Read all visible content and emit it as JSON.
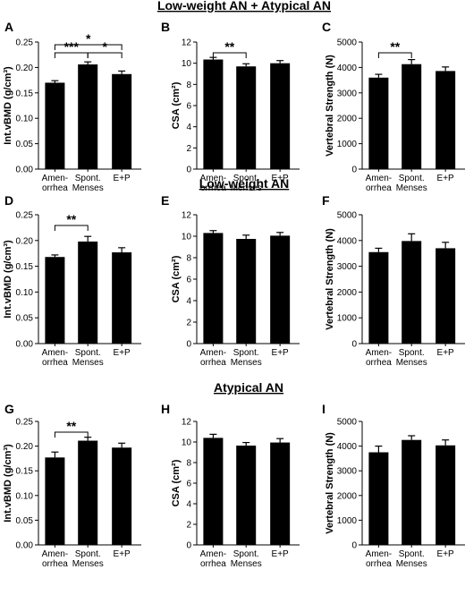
{
  "rows": [
    {
      "title": "Low-weight AN + Atypical AN"
    },
    {
      "title": "Low-weight AN"
    },
    {
      "title": "Atypical AN"
    }
  ],
  "chart_data": [
    {
      "type": "bar",
      "panel": "A",
      "categories": [
        [
          "Amen-",
          "orrhea"
        ],
        [
          "Spont.",
          "Menses"
        ],
        [
          "E+P"
        ]
      ],
      "values": [
        0.17,
        0.206,
        0.187
      ],
      "errors": [
        0.004,
        0.005,
        0.006
      ],
      "ylabel": "Int.vBMD  (g/cm³)",
      "ylim": [
        0,
        0.25
      ],
      "yticks": [
        "0.00",
        "0.05",
        "0.10",
        "0.15",
        "0.20",
        "0.25"
      ],
      "sig": [
        {
          "from": 0,
          "to": 1,
          "level": 1,
          "label": "***"
        },
        {
          "from": 1,
          "to": 2,
          "level": 1,
          "label": "*"
        },
        {
          "from": 0,
          "to": 2,
          "level": 2,
          "label": "*"
        }
      ]
    },
    {
      "type": "bar",
      "panel": "B",
      "categories": [
        [
          "Amen-",
          "orrhea"
        ],
        [
          "Spont.",
          "Menses"
        ],
        [
          "E+P"
        ]
      ],
      "values": [
        10.35,
        9.7,
        10.0
      ],
      "errors": [
        0.2,
        0.25,
        0.25
      ],
      "ylabel": "CSA (cm²)",
      "ylim": [
        0,
        12
      ],
      "yticks": [
        "0",
        "2",
        "4",
        "6",
        "8",
        "10",
        "12"
      ],
      "sig": [
        {
          "from": 0,
          "to": 1,
          "level": 1,
          "label": "**"
        }
      ]
    },
    {
      "type": "bar",
      "panel": "C",
      "categories": [
        [
          "Amen-",
          "orrhea"
        ],
        [
          "Spont.",
          "Menses"
        ],
        [
          "E+P"
        ]
      ],
      "values": [
        3600,
        4130,
        3860
      ],
      "errors": [
        130,
        180,
        160
      ],
      "ylabel": "Vertebral Strength (N)",
      "ylim": [
        0,
        5000
      ],
      "yticks": [
        "0",
        "1000",
        "2000",
        "3000",
        "4000",
        "5000"
      ],
      "sig": [
        {
          "from": 0,
          "to": 1,
          "level": 1,
          "label": "**"
        }
      ]
    },
    {
      "type": "bar",
      "panel": "D",
      "categories": [
        [
          "Amen-",
          "orrhea"
        ],
        [
          "Spont.",
          "Menses"
        ],
        [
          "E+P"
        ]
      ],
      "values": [
        0.168,
        0.198,
        0.177
      ],
      "errors": [
        0.004,
        0.01,
        0.009
      ],
      "ylabel": "Int.vBMD  (g/cm³)",
      "ylim": [
        0,
        0.25
      ],
      "yticks": [
        "0.00",
        "0.05",
        "0.10",
        "0.15",
        "0.20",
        "0.25"
      ],
      "sig": [
        {
          "from": 0,
          "to": 1,
          "level": 1,
          "label": "**"
        }
      ]
    },
    {
      "type": "bar",
      "panel": "E",
      "categories": [
        [
          "Amen-",
          "orrhea"
        ],
        [
          "Spont.",
          "Menses"
        ],
        [
          "E+P"
        ]
      ],
      "values": [
        10.3,
        9.75,
        10.05
      ],
      "errors": [
        0.22,
        0.35,
        0.3
      ],
      "ylabel": "CSA (cm²)",
      "ylim": [
        0,
        12
      ],
      "yticks": [
        "0",
        "2",
        "4",
        "6",
        "8",
        "10",
        "12"
      ],
      "sig": []
    },
    {
      "type": "bar",
      "panel": "F",
      "categories": [
        [
          "Amen-",
          "orrhea"
        ],
        [
          "Spont.",
          "Menses"
        ],
        [
          "E+P"
        ]
      ],
      "values": [
        3550,
        3980,
        3700
      ],
      "errors": [
        150,
        280,
        230
      ],
      "ylabel": "Vertebral Strength (N)",
      "ylim": [
        0,
        5000
      ],
      "yticks": [
        "0",
        "1000",
        "2000",
        "3000",
        "4000",
        "5000"
      ],
      "sig": []
    },
    {
      "type": "bar",
      "panel": "G",
      "categories": [
        [
          "Amen-",
          "orrhea"
        ],
        [
          "Spont.",
          "Menses"
        ],
        [
          "E+P"
        ]
      ],
      "values": [
        0.177,
        0.211,
        0.197
      ],
      "errors": [
        0.011,
        0.007,
        0.009
      ],
      "ylabel": "Int.vBMD  (g/cm³)",
      "ylim": [
        0,
        0.25
      ],
      "yticks": [
        "0.00",
        "0.05",
        "0.10",
        "0.15",
        "0.20",
        "0.25"
      ],
      "sig": [
        {
          "from": 0,
          "to": 1,
          "level": 1,
          "label": "**"
        }
      ]
    },
    {
      "type": "bar",
      "panel": "H",
      "categories": [
        [
          "Amen-",
          "orrhea"
        ],
        [
          "Spont.",
          "Menses"
        ],
        [
          "E+P"
        ]
      ],
      "values": [
        10.4,
        9.65,
        9.95
      ],
      "errors": [
        0.35,
        0.3,
        0.38
      ],
      "ylabel": "CSA (cm²)",
      "ylim": [
        0,
        12
      ],
      "yticks": [
        "0",
        "2",
        "4",
        "6",
        "8",
        "10",
        "12"
      ],
      "sig": []
    },
    {
      "type": "bar",
      "panel": "I",
      "categories": [
        [
          "Amen-",
          "orrhea"
        ],
        [
          "Spont.",
          "Menses"
        ],
        [
          "E+P"
        ]
      ],
      "values": [
        3750,
        4250,
        4030
      ],
      "errors": [
        250,
        170,
        220
      ],
      "ylabel": "Vertebral Strength (N)",
      "ylim": [
        0,
        5000
      ],
      "yticks": [
        "0",
        "1000",
        "2000",
        "3000",
        "4000",
        "5000"
      ],
      "sig": []
    }
  ]
}
